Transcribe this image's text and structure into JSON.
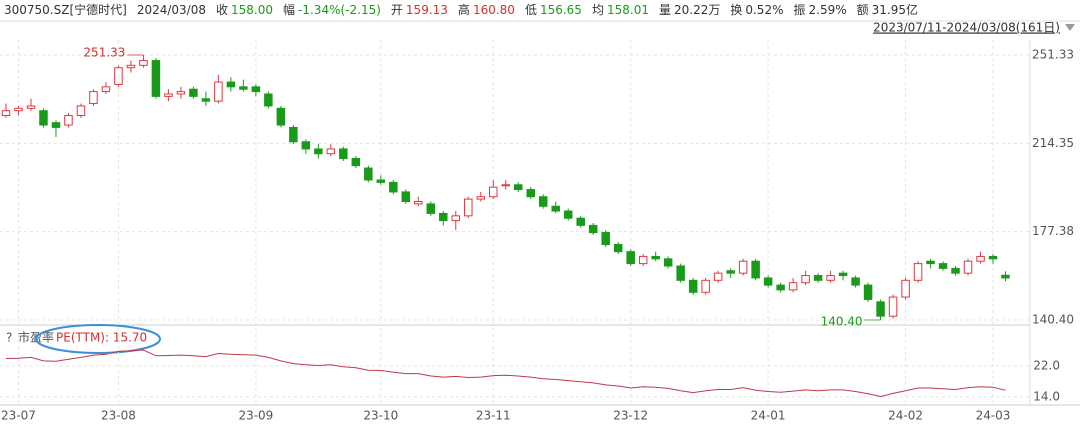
{
  "header": {
    "items": [
      {
        "text": "300750.SZ[宁德时代]",
        "color": "#333"
      },
      {
        "text": "2024/03/08",
        "color": "#333"
      },
      {
        "label": "收",
        "text": "158.00",
        "color": "#1a9a1a"
      },
      {
        "label": "幅",
        "text": "-1.34%(-2.15)",
        "color": "#1a9a1a"
      },
      {
        "label": "开",
        "text": "159.13",
        "color": "#d32f2f"
      },
      {
        "label": "高",
        "text": "160.80",
        "color": "#d32f2f"
      },
      {
        "label": "低",
        "text": "156.65",
        "color": "#1a9a1a"
      },
      {
        "label": "均",
        "text": "158.01",
        "color": "#1a9a1a"
      },
      {
        "label": "量",
        "text": "20.22万",
        "color": "#333"
      },
      {
        "label": "换",
        "text": "0.52%",
        "color": "#333"
      },
      {
        "label": "振",
        "text": "2.59%",
        "color": "#333"
      },
      {
        "label": "额",
        "text": "31.95亿",
        "color": "#333"
      }
    ]
  },
  "chart_data": {
    "type": "candlestick",
    "range": "2023/07/11-2024/03/08(161日)",
    "up_color": "#e0393e",
    "down_color": "#1a9a1a",
    "ylim": [
      138.3,
      257.6
    ],
    "yticks": [
      251.33,
      214.35,
      177.38,
      {
        "value": 140.4,
        "label": "140.40"
      }
    ],
    "xticks": [
      {
        "value": 1,
        "label": "23-07"
      },
      {
        "value": 9,
        "label": "23-08"
      },
      {
        "value": 20,
        "label": "23-09"
      },
      {
        "value": 30,
        "label": "23-10"
      },
      {
        "value": 39,
        "label": "23-11"
      },
      {
        "value": 50,
        "label": "23-12"
      },
      {
        "value": 61,
        "label": "24-01"
      },
      {
        "value": 72,
        "label": "24-02"
      },
      {
        "value": 79,
        "label": "24-03"
      }
    ],
    "grid": true,
    "annotations": [
      {
        "label": "251.33",
        "value": 251.33,
        "color": "#d32f2f"
      },
      {
        "label": "140.40",
        "value": 140.4,
        "color": "#1a9a1a"
      }
    ],
    "candles": [
      [
        226,
        231,
        225,
        228
      ],
      [
        228,
        230,
        226,
        229
      ],
      [
        229,
        233,
        228,
        230
      ],
      [
        228,
        229,
        221,
        222
      ],
      [
        223,
        224,
        217,
        221
      ],
      [
        222,
        227,
        221,
        226
      ],
      [
        226,
        231,
        225,
        230
      ],
      [
        231,
        237,
        230,
        236
      ],
      [
        236,
        240,
        235,
        238
      ],
      [
        239,
        247,
        238,
        246
      ],
      [
        246,
        249,
        244,
        247
      ],
      [
        247,
        251.33,
        246,
        249
      ],
      [
        249,
        250,
        233,
        234
      ],
      [
        234,
        237,
        232,
        235
      ],
      [
        235,
        238,
        233,
        236
      ],
      [
        237,
        238,
        233,
        234
      ],
      [
        233,
        236,
        230,
        232
      ],
      [
        232,
        243,
        231,
        240
      ],
      [
        240,
        242,
        236,
        238
      ],
      [
        238,
        241,
        236,
        237
      ],
      [
        238,
        239,
        234,
        236
      ],
      [
        235,
        236,
        229,
        230
      ],
      [
        229,
        230,
        221,
        222
      ],
      [
        221,
        222,
        214,
        215
      ],
      [
        215,
        216,
        210,
        212
      ],
      [
        212,
        214,
        208,
        210
      ],
      [
        210,
        214,
        209,
        212
      ],
      [
        212,
        213,
        207,
        208
      ],
      [
        208,
        209,
        204,
        205
      ],
      [
        204,
        205,
        198,
        199
      ],
      [
        199,
        201,
        197,
        198
      ],
      [
        198,
        199,
        193,
        194
      ],
      [
        194,
        195,
        189,
        190
      ],
      [
        189,
        192,
        188,
        190
      ],
      [
        189,
        190,
        184,
        185
      ],
      [
        185,
        186,
        180,
        182
      ],
      [
        182,
        186,
        178,
        184
      ],
      [
        184,
        192,
        183,
        191
      ],
      [
        191,
        194,
        190,
        192
      ],
      [
        192,
        199,
        191,
        196
      ],
      [
        197,
        199,
        195,
        197
      ],
      [
        197,
        198,
        194,
        195
      ],
      [
        195,
        196,
        191,
        192
      ],
      [
        192,
        193,
        187,
        188
      ],
      [
        188,
        190,
        185,
        186
      ],
      [
        186,
        187,
        182,
        183
      ],
      [
        183,
        184,
        179,
        180
      ],
      [
        180,
        181,
        176,
        177
      ],
      [
        177,
        178,
        171,
        172
      ],
      [
        172,
        173,
        168,
        169
      ],
      [
        169,
        170,
        163,
        164
      ],
      [
        164,
        168,
        163,
        167
      ],
      [
        167,
        169,
        165,
        166
      ],
      [
        166,
        167,
        162,
        163
      ],
      [
        163,
        164,
        156,
        157
      ],
      [
        157,
        158,
        151,
        152
      ],
      [
        152,
        158,
        151,
        157
      ],
      [
        157,
        161,
        156,
        160
      ],
      [
        161,
        162,
        158,
        160
      ],
      [
        160,
        166,
        159,
        165
      ],
      [
        165,
        166,
        157,
        158
      ],
      [
        158,
        159,
        154,
        155
      ],
      [
        155,
        156,
        152,
        153
      ],
      [
        153,
        158,
        152,
        156
      ],
      [
        156,
        161,
        155,
        159
      ],
      [
        159,
        160,
        156,
        157
      ],
      [
        157,
        161,
        156,
        159
      ],
      [
        160,
        161,
        157,
        159
      ],
      [
        158,
        159,
        154,
        155
      ],
      [
        155,
        156,
        148,
        149
      ],
      [
        148,
        149,
        140.4,
        142
      ],
      [
        142,
        151,
        141,
        150
      ],
      [
        150,
        158,
        149,
        157
      ],
      [
        157,
        165,
        156,
        164
      ],
      [
        165,
        166,
        162,
        164
      ],
      [
        164,
        165,
        161,
        162
      ],
      [
        162,
        163,
        159,
        160
      ],
      [
        160,
        166,
        159,
        165
      ],
      [
        165,
        169,
        164,
        167
      ],
      [
        167,
        168,
        164,
        166
      ],
      [
        159.13,
        160.8,
        156.65,
        158
      ]
    ],
    "pe_panel": {
      "help": "?",
      "title": "市盈率",
      "label": "PE(TTM): 15.70",
      "color": "#c0394a",
      "ylim": [
        11.9,
        27.4
      ],
      "yticks": [
        {
          "value": 22,
          "label": "22.0"
        },
        {
          "value": 14,
          "label": "14.0"
        }
      ],
      "values": [
        23.9,
        24.0,
        24.2,
        23.3,
        23.2,
        23.7,
        24.2,
        24.8,
        25.0,
        25.8,
        25.9,
        26.1,
        24.6,
        24.7,
        24.8,
        24.6,
        24.4,
        25.2,
        25.0,
        24.9,
        24.8,
        24.2,
        23.3,
        22.6,
        22.3,
        22.1,
        22.3,
        21.8,
        21.5,
        20.9,
        20.8,
        20.4,
        20.0,
        20.0,
        19.4,
        19.1,
        19.3,
        19.0,
        19.1,
        19.5,
        19.6,
        19.4,
        19.1,
        18.7,
        18.5,
        18.2,
        17.9,
        17.6,
        17.1,
        16.8,
        16.3,
        16.6,
        16.5,
        16.2,
        15.6,
        15.1,
        15.6,
        15.9,
        15.9,
        16.4,
        15.7,
        15.4,
        15.2,
        15.5,
        15.8,
        15.6,
        15.8,
        15.8,
        15.4,
        14.8,
        14.1,
        14.9,
        15.6,
        16.3,
        16.3,
        16.1,
        15.9,
        16.4,
        16.6,
        16.5,
        15.7
      ]
    }
  }
}
